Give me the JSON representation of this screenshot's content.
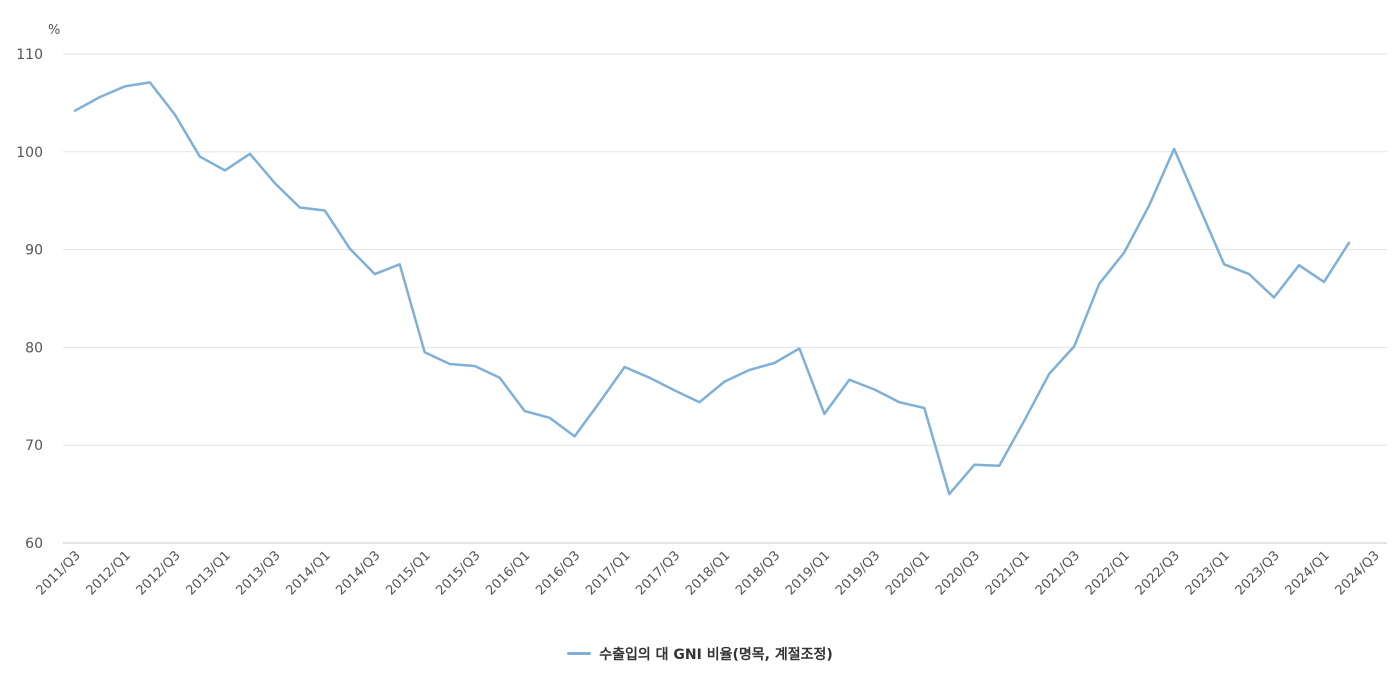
{
  "chart_data": {
    "type": "line",
    "title": "",
    "xlabel": "",
    "ylabel": "%",
    "ylim": [
      60,
      110
    ],
    "yticks": [
      60,
      70,
      80,
      90,
      100,
      110
    ],
    "grid": true,
    "legend_position": "bottom-center",
    "x": [
      "2011/Q3",
      "2011/Q4",
      "2012/Q1",
      "2012/Q2",
      "2012/Q3",
      "2012/Q4",
      "2013/Q1",
      "2013/Q2",
      "2013/Q3",
      "2013/Q4",
      "2014/Q1",
      "2014/Q2",
      "2014/Q3",
      "2014/Q4",
      "2015/Q1",
      "2015/Q2",
      "2015/Q3",
      "2015/Q4",
      "2016/Q1",
      "2016/Q2",
      "2016/Q3",
      "2016/Q4",
      "2017/Q1",
      "2017/Q2",
      "2017/Q3",
      "2017/Q4",
      "2018/Q1",
      "2018/Q2",
      "2018/Q3",
      "2018/Q4",
      "2019/Q1",
      "2019/Q2",
      "2019/Q3",
      "2019/Q4",
      "2020/Q1",
      "2020/Q2",
      "2020/Q3",
      "2020/Q4",
      "2021/Q1",
      "2021/Q2",
      "2021/Q3",
      "2021/Q4",
      "2022/Q1",
      "2022/Q2",
      "2022/Q3",
      "2022/Q4",
      "2023/Q1",
      "2023/Q2",
      "2023/Q3",
      "2023/Q4",
      "2024/Q1",
      "2024/Q2"
    ],
    "xtick_labels": [
      "2011/Q3",
      "2012/Q1",
      "2012/Q3",
      "2013/Q1",
      "2013/Q3",
      "2014/Q1",
      "2014/Q3",
      "2015/Q1",
      "2015/Q3",
      "2016/Q1",
      "2016/Q3",
      "2017/Q1",
      "2017/Q3",
      "2018/Q1",
      "2018/Q3",
      "2019/Q1",
      "2019/Q3",
      "2020/Q1",
      "2020/Q3",
      "2021/Q1",
      "2021/Q3",
      "2022/Q1",
      "2022/Q3",
      "2023/Q1",
      "2023/Q3",
      "2024/Q1",
      "2024/Q3"
    ],
    "series": [
      {
        "name": "수출입의 대 GNI 비율(명목, 계절조정)",
        "color": "#7fb0d8",
        "values": [
          104.2,
          105.6,
          106.7,
          107.1,
          103.8,
          99.5,
          98.1,
          99.8,
          96.8,
          94.3,
          94.0,
          90.1,
          87.5,
          88.5,
          79.5,
          78.3,
          78.1,
          76.9,
          73.5,
          72.8,
          70.9,
          74.4,
          78.0,
          76.9,
          75.6,
          74.4,
          76.5,
          77.7,
          78.4,
          79.9,
          73.2,
          76.7,
          75.7,
          74.4,
          73.8,
          65.0,
          68.0,
          67.9,
          72.5,
          77.3,
          80.1,
          86.5,
          89.7,
          94.5,
          100.3,
          94.4,
          88.5,
          87.5,
          85.1,
          88.4,
          86.7,
          90.7
        ]
      }
    ]
  },
  "legend": {
    "label": "수출입의 대 GNI 비율(명목, 계절조정)",
    "color": "#7fb0d8"
  },
  "axis": {
    "y_unit": "%"
  }
}
